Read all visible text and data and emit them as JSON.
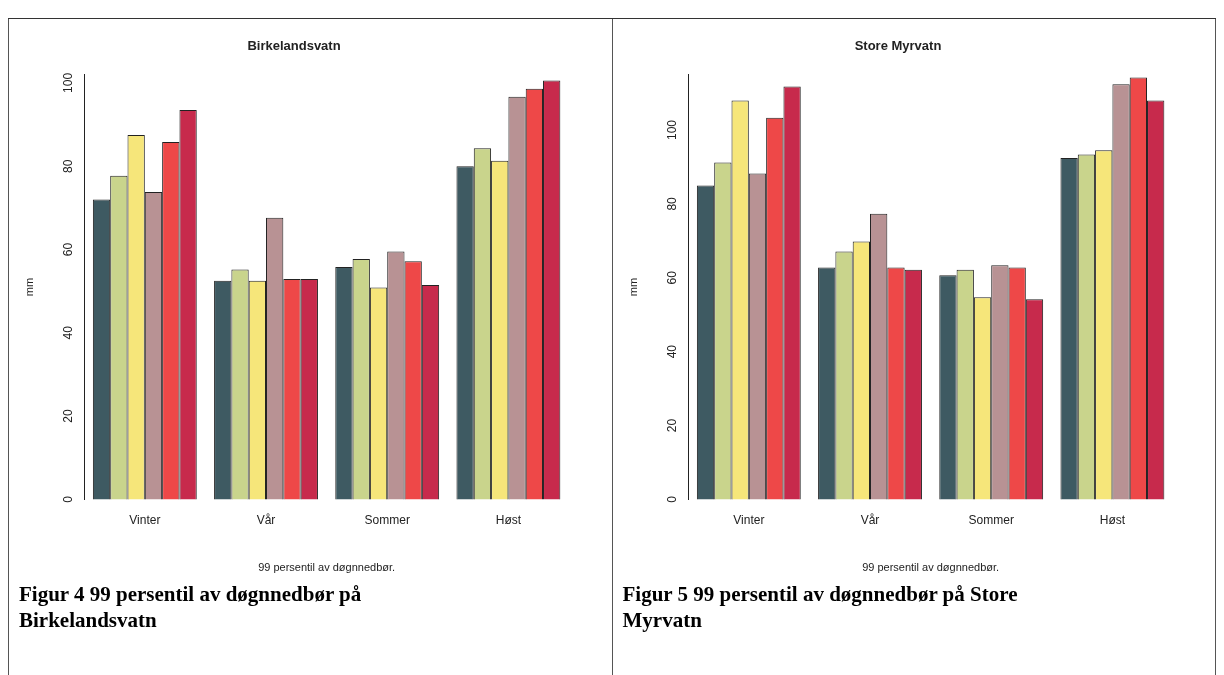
{
  "chart_data": [
    {
      "type": "bar",
      "title": "Birkelandsvatn",
      "xlabel": "99 persentil av døgnnedbør.",
      "ylabel": "mm",
      "categories": [
        "Vinter",
        "Vår",
        "Sommer",
        "Høst"
      ],
      "series": [
        {
          "color": "#3e5a62",
          "values": [
            72,
            52.5,
            55.8,
            80
          ]
        },
        {
          "color": "#c9d48c",
          "values": [
            77.7,
            55.2,
            57.7,
            84.3
          ]
        },
        {
          "color": "#f6e67a",
          "values": [
            87.5,
            52.5,
            50.9,
            81.3
          ]
        },
        {
          "color": "#b89294",
          "values": [
            73.8,
            67.6,
            59.5,
            96.7
          ]
        },
        {
          "color": "#ee4848",
          "values": [
            85.8,
            52.9,
            57.2,
            98.6
          ]
        },
        {
          "color": "#c72a4c",
          "values": [
            93.5,
            52.9,
            51.5,
            100.6
          ]
        }
      ],
      "ylim": [
        0,
        102
      ],
      "yticks": [
        0,
        20,
        40,
        60,
        80,
        100
      ],
      "grid": false,
      "legend": false,
      "annotations": [
        "Figur 4 99 persentil av døgnnedbør på Birkelandsvatn"
      ]
    },
    {
      "type": "bar",
      "title": "Store Myrvatn",
      "xlabel": "99 persentil av døgnnedbør.",
      "ylabel": "mm",
      "categories": [
        "Vinter",
        "Vår",
        "Sommer",
        "Høst"
      ],
      "series": [
        {
          "color": "#3e5a62",
          "values": [
            85,
            62.8,
            60.7,
            92.4
          ]
        },
        {
          "color": "#c9d48c",
          "values": [
            91.2,
            67.1,
            62.2,
            93.4
          ]
        },
        {
          "color": "#f6e67a",
          "values": [
            108,
            69.8,
            54.7,
            94.5
          ]
        },
        {
          "color": "#b89294",
          "values": [
            88.2,
            77.3,
            63.4,
            112.4
          ]
        },
        {
          "color": "#ee4848",
          "values": [
            103.3,
            62.8,
            62.8,
            114.2
          ]
        },
        {
          "color": "#c72a4c",
          "values": [
            111.8,
            62.2,
            54.2,
            108
          ]
        }
      ],
      "ylim": [
        0,
        115
      ],
      "yticks": [
        0,
        20,
        40,
        60,
        80,
        100
      ],
      "grid": false,
      "legend": false,
      "annotations": [
        "Figur 5 99 persentil av døgnnedbør på Store Myrvatn"
      ]
    }
  ]
}
